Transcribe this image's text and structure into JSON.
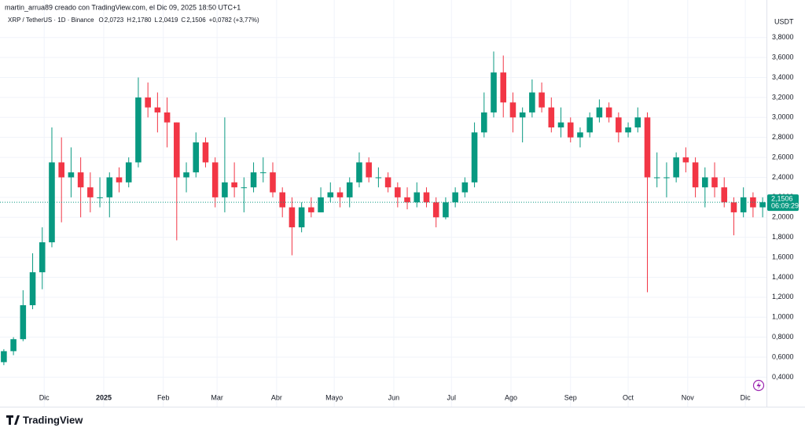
{
  "chart_data": {
    "type": "candlestick",
    "subtitle": "martin_arrua89 creado con TradingView.com, el Dic 09, 2025 18:50 UTC+1",
    "title": "XRP / TetherUS · 1D · Binance",
    "legend_values": [
      {
        "label": "O",
        "value": "2,0723"
      },
      {
        "label": "H",
        "value": "2,1780"
      },
      {
        "label": "L",
        "value": "2,0419"
      },
      {
        "label": "C",
        "value": "2,1506"
      }
    ],
    "change": "+0,0782 (+3,77%)",
    "currency": "USDT",
    "brand": "TradingView",
    "up_color": "#089981",
    "down_color": "#f23645",
    "grid": true,
    "xlim": [
      3,
      402
    ],
    "ylim": [
      0.12,
      3.9
    ],
    "xticks": [
      {
        "value": 26,
        "label": "Dic"
      },
      {
        "value": 57,
        "label": "2025"
      },
      {
        "value": 88,
        "label": "Feb"
      },
      {
        "value": 116,
        "label": "Mar"
      },
      {
        "value": 147,
        "label": "Abr"
      },
      {
        "value": 177,
        "label": "Mayo"
      },
      {
        "value": 208,
        "label": "Jun"
      },
      {
        "value": 238,
        "label": "Jul"
      },
      {
        "value": 269,
        "label": "Ago"
      },
      {
        "value": 300,
        "label": "Sep"
      },
      {
        "value": 330,
        "label": "Oct"
      },
      {
        "value": 361,
        "label": "Nov"
      },
      {
        "value": 391,
        "label": "Dic"
      }
    ],
    "yticks": [
      {
        "value": 0.4,
        "label": "0,4000"
      },
      {
        "value": 0.6,
        "label": "0,6000"
      },
      {
        "value": 0.8,
        "label": "0,8000"
      },
      {
        "value": 1.0,
        "label": "1,0000"
      },
      {
        "value": 1.2,
        "label": "1,2000"
      },
      {
        "value": 1.4,
        "label": "1,4000"
      },
      {
        "value": 1.6,
        "label": "1,6000"
      },
      {
        "value": 1.8,
        "label": "1,8000"
      },
      {
        "value": 2.0,
        "label": "2,0000"
      },
      {
        "value": 2.2,
        "label": "2,2000"
      },
      {
        "value": 2.4,
        "label": "2,4000"
      },
      {
        "value": 2.6,
        "label": "2,6000"
      },
      {
        "value": 2.8,
        "label": "2,8000"
      },
      {
        "value": 3.0,
        "label": "3,0000"
      },
      {
        "value": 3.2,
        "label": "3,2000"
      },
      {
        "value": 3.4,
        "label": "3,4000"
      },
      {
        "value": 3.6,
        "label": "3,6000"
      },
      {
        "value": 3.8,
        "label": "3,8000"
      }
    ],
    "last_price": {
      "value": 2.1506,
      "label": "2,1506"
    },
    "countdown": "06:09:29",
    "x": [
      5,
      10,
      15,
      20,
      25,
      30,
      35,
      40,
      45,
      50,
      55,
      60,
      65,
      70,
      75,
      80,
      85,
      90,
      95,
      100,
      105,
      110,
      115,
      120,
      125,
      130,
      135,
      140,
      145,
      150,
      155,
      160,
      165,
      170,
      175,
      180,
      185,
      190,
      195,
      200,
      205,
      210,
      215,
      220,
      225,
      230,
      235,
      240,
      245,
      250,
      255,
      260,
      265,
      270,
      275,
      280,
      285,
      290,
      295,
      300,
      305,
      310,
      315,
      320,
      325,
      330,
      335,
      340,
      345,
      350,
      355,
      360,
      365,
      370,
      375,
      380,
      385,
      390,
      395,
      400
    ],
    "open": [
      0.55,
      0.66,
      0.78,
      1.12,
      1.45,
      1.75,
      2.55,
      2.4,
      2.45,
      2.3,
      2.2,
      2.2,
      2.4,
      2.35,
      2.55,
      3.2,
      3.1,
      3.05,
      2.95,
      2.4,
      2.45,
      2.75,
      2.55,
      2.2,
      2.35,
      2.3,
      2.3,
      2.45,
      2.45,
      2.25,
      2.1,
      1.9,
      2.1,
      2.05,
      2.2,
      2.25,
      2.2,
      2.35,
      2.55,
      2.4,
      2.4,
      2.3,
      2.2,
      2.15,
      2.25,
      2.15,
      2.0,
      2.15,
      2.25,
      2.35,
      2.85,
      3.05,
      3.45,
      3.15,
      3.0,
      3.05,
      3.25,
      3.1,
      2.9,
      2.95,
      2.8,
      2.85,
      3.0,
      3.1,
      3.0,
      2.85,
      2.9,
      3.0,
      2.4,
      2.4,
      2.4,
      2.6,
      2.55,
      2.3,
      2.4,
      2.3,
      2.15,
      2.05,
      2.2,
      2.1
    ],
    "high": [
      0.68,
      0.8,
      1.27,
      1.64,
      1.9,
      2.9,
      2.8,
      2.7,
      2.6,
      2.45,
      2.4,
      2.45,
      2.5,
      2.6,
      3.4,
      3.35,
      3.25,
      3.2,
      2.95,
      2.55,
      2.85,
      2.8,
      2.6,
      3.0,
      2.55,
      2.4,
      2.55,
      2.6,
      2.55,
      2.3,
      2.2,
      2.15,
      2.2,
      2.3,
      2.35,
      2.3,
      2.4,
      2.65,
      2.6,
      2.5,
      2.45,
      2.35,
      2.3,
      2.35,
      2.3,
      2.2,
      2.2,
      2.3,
      2.4,
      2.95,
      3.25,
      3.66,
      3.62,
      3.25,
      3.1,
      3.38,
      3.35,
      3.2,
      3.1,
      3.0,
      2.9,
      3.05,
      3.18,
      3.15,
      3.05,
      2.95,
      3.1,
      3.05,
      2.65,
      2.55,
      2.65,
      2.7,
      2.6,
      2.5,
      2.55,
      2.4,
      2.2,
      2.3,
      2.25,
      2.2
    ],
    "low": [
      0.52,
      0.62,
      0.76,
      1.08,
      1.28,
      1.7,
      1.95,
      2.2,
      2.0,
      2.05,
      2.1,
      2.0,
      2.25,
      2.3,
      2.5,
      3.0,
      2.85,
      2.7,
      1.77,
      2.25,
      2.4,
      2.5,
      2.1,
      2.05,
      2.2,
      2.05,
      2.25,
      2.35,
      2.2,
      2.0,
      1.62,
      1.85,
      2.0,
      2.05,
      2.15,
      2.1,
      2.1,
      2.3,
      2.35,
      2.3,
      2.25,
      2.1,
      2.08,
      2.1,
      2.1,
      1.9,
      1.98,
      2.1,
      2.2,
      2.3,
      2.8,
      3.0,
      3.0,
      2.85,
      2.75,
      3.0,
      3.05,
      2.85,
      2.8,
      2.75,
      2.7,
      2.8,
      2.95,
      2.95,
      2.75,
      2.8,
      2.85,
      1.25,
      2.3,
      2.2,
      2.35,
      2.45,
      2.2,
      2.1,
      2.2,
      2.1,
      1.82,
      2.0,
      2.0,
      2.0
    ],
    "close": [
      0.66,
      0.78,
      1.12,
      1.45,
      1.75,
      2.55,
      2.4,
      2.45,
      2.3,
      2.2,
      2.2,
      2.4,
      2.35,
      2.55,
      3.2,
      3.1,
      3.05,
      2.95,
      2.4,
      2.45,
      2.75,
      2.55,
      2.2,
      2.35,
      2.3,
      2.3,
      2.45,
      2.45,
      2.25,
      2.1,
      1.9,
      2.1,
      2.05,
      2.2,
      2.25,
      2.2,
      2.35,
      2.55,
      2.4,
      2.4,
      2.3,
      2.2,
      2.15,
      2.25,
      2.15,
      2.0,
      2.15,
      2.25,
      2.35,
      2.85,
      3.05,
      3.45,
      3.15,
      3.0,
      3.05,
      3.25,
      3.1,
      2.9,
      2.95,
      2.8,
      2.85,
      3.0,
      3.1,
      3.0,
      2.85,
      2.9,
      3.0,
      2.4,
      2.4,
      2.4,
      2.6,
      2.55,
      2.3,
      2.4,
      2.3,
      2.15,
      2.05,
      2.2,
      2.1,
      2.1506
    ]
  }
}
